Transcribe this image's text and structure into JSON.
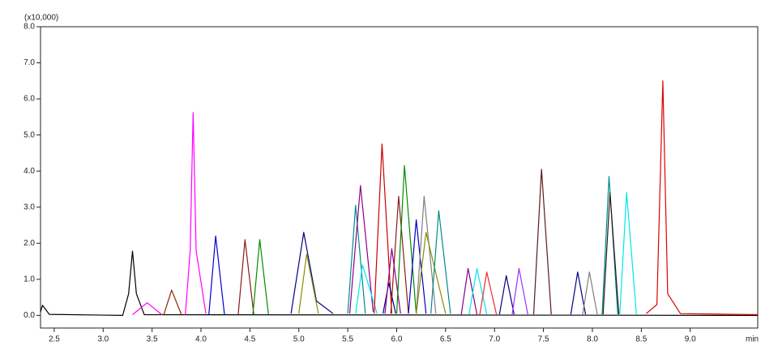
{
  "chart_data": {
    "type": "line",
    "annotation": "(x10,000)",
    "x_unit": "min",
    "xlim": [
      2.36,
      9.69
    ],
    "ylim": [
      -0.35,
      8.0
    ],
    "xticks": [
      {
        "value": 2.5,
        "label": "2.5"
      },
      {
        "value": 3,
        "label": "3.0"
      },
      {
        "value": 3.5,
        "label": "3.5"
      },
      {
        "value": 4,
        "label": "4.0"
      },
      {
        "value": 4.5,
        "label": "4.5"
      },
      {
        "value": 5,
        "label": "5.0"
      },
      {
        "value": 5.5,
        "label": "5.5"
      },
      {
        "value": 6,
        "label": "6.0"
      },
      {
        "value": 6.5,
        "label": "6.5"
      },
      {
        "value": 7,
        "label": "7.0"
      },
      {
        "value": 7.5,
        "label": "7.5"
      },
      {
        "value": 8,
        "label": "8.0"
      },
      {
        "value": 8.5,
        "label": "8.5"
      },
      {
        "value": 9,
        "label": "9.0"
      }
    ],
    "yticks": [
      {
        "value": 0,
        "label": "0.0"
      },
      {
        "value": 1,
        "label": "1.0"
      },
      {
        "value": 2,
        "label": "2.0"
      },
      {
        "value": 3,
        "label": "3.0"
      },
      {
        "value": 4,
        "label": "4.0"
      },
      {
        "value": 5,
        "label": "5.0"
      },
      {
        "value": 6,
        "label": "6.0"
      },
      {
        "value": 7,
        "label": "7.0"
      },
      {
        "value": 8,
        "label": "8.0"
      }
    ],
    "series": [
      {
        "color": "#000000",
        "x": [
          2.36,
          2.38,
          2.45,
          3.2,
          3.26,
          3.3,
          3.34,
          3.42,
          9.69
        ],
        "values": [
          0.1,
          0.28,
          0.03,
          0.0,
          0.6,
          1.78,
          0.6,
          0.02,
          0.0
        ]
      },
      {
        "color": "#ff00ff",
        "x": [
          3.3,
          3.45,
          3.6
        ],
        "values": [
          0.02,
          0.35,
          0.02
        ]
      },
      {
        "color": "#8b2500",
        "x": [
          3.62,
          3.7,
          3.8
        ],
        "values": [
          0.02,
          0.7,
          0.02
        ]
      },
      {
        "color": "#ff00ff",
        "x": [
          3.84,
          3.89,
          3.92,
          3.95,
          4.05
        ],
        "values": [
          0.02,
          1.8,
          5.62,
          1.8,
          0.05
        ]
      },
      {
        "color": "#0000cd",
        "x": [
          4.08,
          4.15,
          4.24
        ],
        "values": [
          0.02,
          2.2,
          0.02
        ]
      },
      {
        "color": "#8b1a1a",
        "x": [
          4.38,
          4.45,
          4.54
        ],
        "values": [
          0.02,
          2.1,
          0.02
        ]
      },
      {
        "color": "#008b00",
        "x": [
          4.53,
          4.6,
          4.69
        ],
        "values": [
          0.02,
          2.1,
          0.02
        ]
      },
      {
        "color": "#00008b",
        "x": [
          4.92,
          5.05,
          5.18,
          5.35
        ],
        "values": [
          0.05,
          2.3,
          0.4,
          0.05
        ]
      },
      {
        "color": "#8b8b00",
        "x": [
          5.0,
          5.08,
          5.2
        ],
        "values": [
          0.05,
          1.7,
          0.05
        ]
      },
      {
        "color": "#008b8b",
        "x": [
          5.5,
          5.58,
          5.68
        ],
        "values": [
          0.05,
          3.05,
          0.05
        ]
      },
      {
        "color": "#8b008b",
        "x": [
          5.52,
          5.63,
          5.76
        ],
        "values": [
          0.05,
          3.6,
          0.1
        ]
      },
      {
        "color": "#00e5ee",
        "x": [
          5.58,
          5.65,
          5.8
        ],
        "values": [
          0.05,
          1.4,
          0.05
        ]
      },
      {
        "color": "#cd0000",
        "x": [
          5.77,
          5.85,
          5.95
        ],
        "values": [
          0.05,
          4.75,
          0.05
        ]
      },
      {
        "color": "#00008b",
        "x": [
          5.86,
          5.92,
          5.99
        ],
        "values": [
          0.05,
          0.9,
          0.05
        ]
      },
      {
        "color": "#8b008b",
        "x": [
          5.88,
          5.95,
          6.04
        ],
        "values": [
          0.05,
          1.85,
          0.05
        ]
      },
      {
        "color": "#8b1a1a",
        "x": [
          5.94,
          6.02,
          6.12
        ],
        "values": [
          0.05,
          3.3,
          0.05
        ]
      },
      {
        "color": "#008b00",
        "x": [
          6.0,
          6.08,
          6.2
        ],
        "values": [
          0.05,
          4.15,
          0.05
        ]
      },
      {
        "color": "#0000cd",
        "x": [
          6.12,
          6.2,
          6.3
        ],
        "values": [
          0.05,
          2.65,
          0.05
        ]
      },
      {
        "color": "#7f7f7f",
        "x": [
          6.2,
          6.28,
          6.4
        ],
        "values": [
          0.05,
          3.3,
          0.05
        ]
      },
      {
        "color": "#8b8b00",
        "x": [
          6.2,
          6.3,
          6.5
        ],
        "values": [
          0.05,
          2.3,
          0.05
        ]
      },
      {
        "color": "#008b8b",
        "x": [
          6.35,
          6.43,
          6.55
        ],
        "values": [
          0.05,
          2.9,
          0.05
        ]
      },
      {
        "color": "#8b008b",
        "x": [
          6.66,
          6.73,
          6.82
        ],
        "values": [
          0.03,
          1.3,
          0.03
        ]
      },
      {
        "color": "#00e5ee",
        "x": [
          6.74,
          6.82,
          6.92
        ],
        "values": [
          0.03,
          1.3,
          0.03
        ]
      },
      {
        "color": "#ee2c2c",
        "x": [
          6.85,
          6.92,
          7.02
        ],
        "values": [
          0.03,
          1.2,
          0.03
        ]
      },
      {
        "color": "#00008b",
        "x": [
          7.05,
          7.12,
          7.2
        ],
        "values": [
          0.03,
          1.1,
          0.03
        ]
      },
      {
        "color": "#9b30ff",
        "x": [
          7.18,
          7.25,
          7.34
        ],
        "values": [
          0.03,
          1.3,
          0.03
        ]
      },
      {
        "color": "#5c1a1a",
        "x": [
          7.4,
          7.48,
          7.58
        ],
        "values": [
          0.03,
          4.05,
          0.03
        ]
      },
      {
        "color": "#00008b",
        "x": [
          7.78,
          7.85,
          7.93
        ],
        "values": [
          0.03,
          1.2,
          0.03
        ]
      },
      {
        "color": "#7f7f7f",
        "x": [
          7.9,
          7.97,
          8.05
        ],
        "values": [
          0.03,
          1.2,
          0.03
        ]
      },
      {
        "color": "#008b8b",
        "x": [
          8.1,
          8.17,
          8.26
        ],
        "values": [
          0.03,
          3.85,
          0.03
        ]
      },
      {
        "color": "#2f1a1a",
        "x": [
          8.11,
          8.18,
          8.27
        ],
        "values": [
          0.03,
          3.4,
          0.03
        ]
      },
      {
        "color": "#00e5ee",
        "x": [
          8.28,
          8.35,
          8.45
        ],
        "values": [
          0.03,
          3.4,
          0.03
        ]
      },
      {
        "color": "#dd0000",
        "x": [
          8.55,
          8.66,
          8.72,
          8.77,
          8.9,
          9.69
        ],
        "values": [
          0.05,
          0.3,
          6.5,
          0.6,
          0.05,
          0.02
        ]
      }
    ]
  }
}
